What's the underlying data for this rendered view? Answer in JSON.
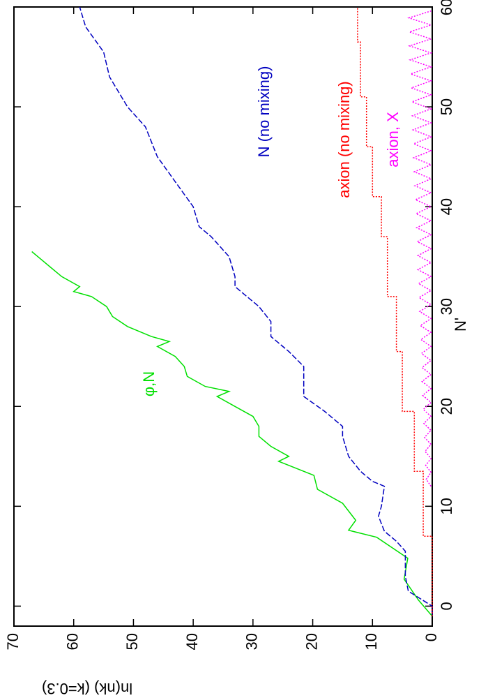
{
  "chart_data": {
    "type": "line",
    "x_label": "N'",
    "y_label": "ln(nk) (k=0.3)",
    "xlim": [
      -2,
      60
    ],
    "xticks": [
      0,
      10,
      20,
      30,
      40,
      50,
      60
    ],
    "ylim": [
      0,
      70
    ],
    "yticks": [
      0,
      10,
      20,
      30,
      40,
      50,
      60,
      70
    ],
    "orientation": "rotated",
    "series": [
      {
        "name": "φ,N",
        "color": "#00e000",
        "dash": "solid",
        "x": [
          -1,
          0.6,
          2.7,
          4.8,
          6.9,
          7.6,
          8.6,
          10.3,
          11.7,
          13.1,
          14.5,
          15,
          16,
          17,
          18,
          19,
          20,
          21,
          21.5,
          22,
          23,
          24,
          25,
          26,
          26.5,
          27,
          28,
          29,
          30,
          31,
          31.5,
          32,
          33,
          34,
          35,
          35.5
        ],
        "values": [
          0,
          2.3,
          4.7,
          4.1,
          9.3,
          14,
          12.8,
          15,
          19.2,
          19.8,
          25.7,
          24,
          27,
          29,
          29,
          30,
          33,
          36,
          34,
          38,
          41,
          41.5,
          43,
          46,
          44,
          47,
          51,
          53.5,
          54.5,
          57,
          60,
          59,
          62,
          64,
          66,
          67
        ]
      },
      {
        "name": "N (no mixing)",
        "color": "#0000c0",
        "dash": "dashed",
        "x": [
          -1,
          0,
          1.5,
          3,
          5.5,
          6.5,
          7.5,
          9,
          10,
          12,
          12.5,
          13.5,
          15,
          17,
          18,
          19.5,
          21,
          24,
          25.5,
          27,
          28.5,
          30,
          32,
          33,
          35,
          37,
          38,
          40,
          42.5,
          45,
          48,
          50,
          53,
          55.5,
          58,
          60
        ],
        "values": [
          0,
          0,
          4,
          4.5,
          4.5,
          6,
          8,
          9,
          8.5,
          8,
          10,
          12,
          14,
          15,
          15,
          18,
          21.5,
          21.5,
          24,
          27,
          27,
          29,
          33,
          33,
          34,
          37,
          39,
          40,
          43,
          46,
          48,
          51,
          54,
          55,
          58,
          59
        ]
      },
      {
        "name": "axion (no mixing)",
        "color": "#ff0000",
        "dash": "dotted",
        "x": [
          -1,
          7,
          7,
          13.5,
          13.5,
          19.5,
          19.5,
          25.5,
          25.5,
          31,
          31,
          37,
          37,
          41,
          41,
          46,
          46,
          51,
          51,
          56.5,
          56.5,
          60
        ],
        "values": [
          0,
          0,
          1.5,
          1.5,
          3,
          3,
          5,
          5,
          6,
          6,
          7.5,
          7.5,
          8.5,
          8.5,
          10,
          10,
          11,
          11,
          12,
          12,
          12.5,
          12.5
        ]
      },
      {
        "name": "axion, X",
        "color": "#ff00ff",
        "dash": "dotted",
        "x": [
          12,
          12.7,
          13.4,
          14.1,
          14.8,
          15.5,
          16.2,
          16.9,
          17.6,
          18.3,
          19,
          19.7,
          20.4,
          21.1,
          21.8,
          22.5,
          23.2,
          23.9,
          24.6,
          25.3,
          26,
          26.7,
          27.4,
          28.1,
          28.8,
          29.5,
          30.2,
          30.9,
          31.6,
          32.3,
          33,
          33.7,
          34.4,
          35.1,
          35.8,
          36.5,
          37.2,
          37.9,
          38.6,
          39.3,
          40,
          40.7,
          41.4,
          42.1,
          42.8,
          43.5,
          44.2,
          44.9,
          45.6,
          46.3,
          47,
          47.7,
          48.4,
          49.1,
          49.8,
          50.5,
          51.2,
          51.9,
          52.6,
          53.3,
          54,
          54.7,
          55.4,
          56.1,
          56.8,
          57.5,
          58.2,
          58.9,
          59.6
        ],
        "values": [
          0.2,
          1.0,
          0.2,
          1.1,
          0.2,
          1.2,
          0.2,
          1.3,
          0.2,
          1.4,
          0.2,
          1.5,
          0.2,
          1.6,
          0.2,
          1.7,
          0.2,
          1.7,
          0.2,
          1.8,
          0.2,
          1.9,
          0.2,
          2.0,
          0.2,
          2.1,
          0.2,
          2.2,
          0.2,
          2.3,
          0.2,
          2.4,
          0.2,
          2.4,
          0.2,
          2.5,
          0.2,
          2.6,
          0.2,
          2.7,
          0.2,
          2.8,
          0.2,
          2.9,
          0.2,
          3.0,
          0.2,
          3.1,
          0.2,
          3.1,
          0.2,
          3.2,
          0.2,
          3.3,
          0.2,
          3.4,
          0.2,
          3.5,
          0.2,
          3.6,
          0.2,
          3.7,
          0.2,
          3.8,
          0.2,
          3.8,
          0.2,
          3.9,
          0.2
        ]
      }
    ]
  }
}
